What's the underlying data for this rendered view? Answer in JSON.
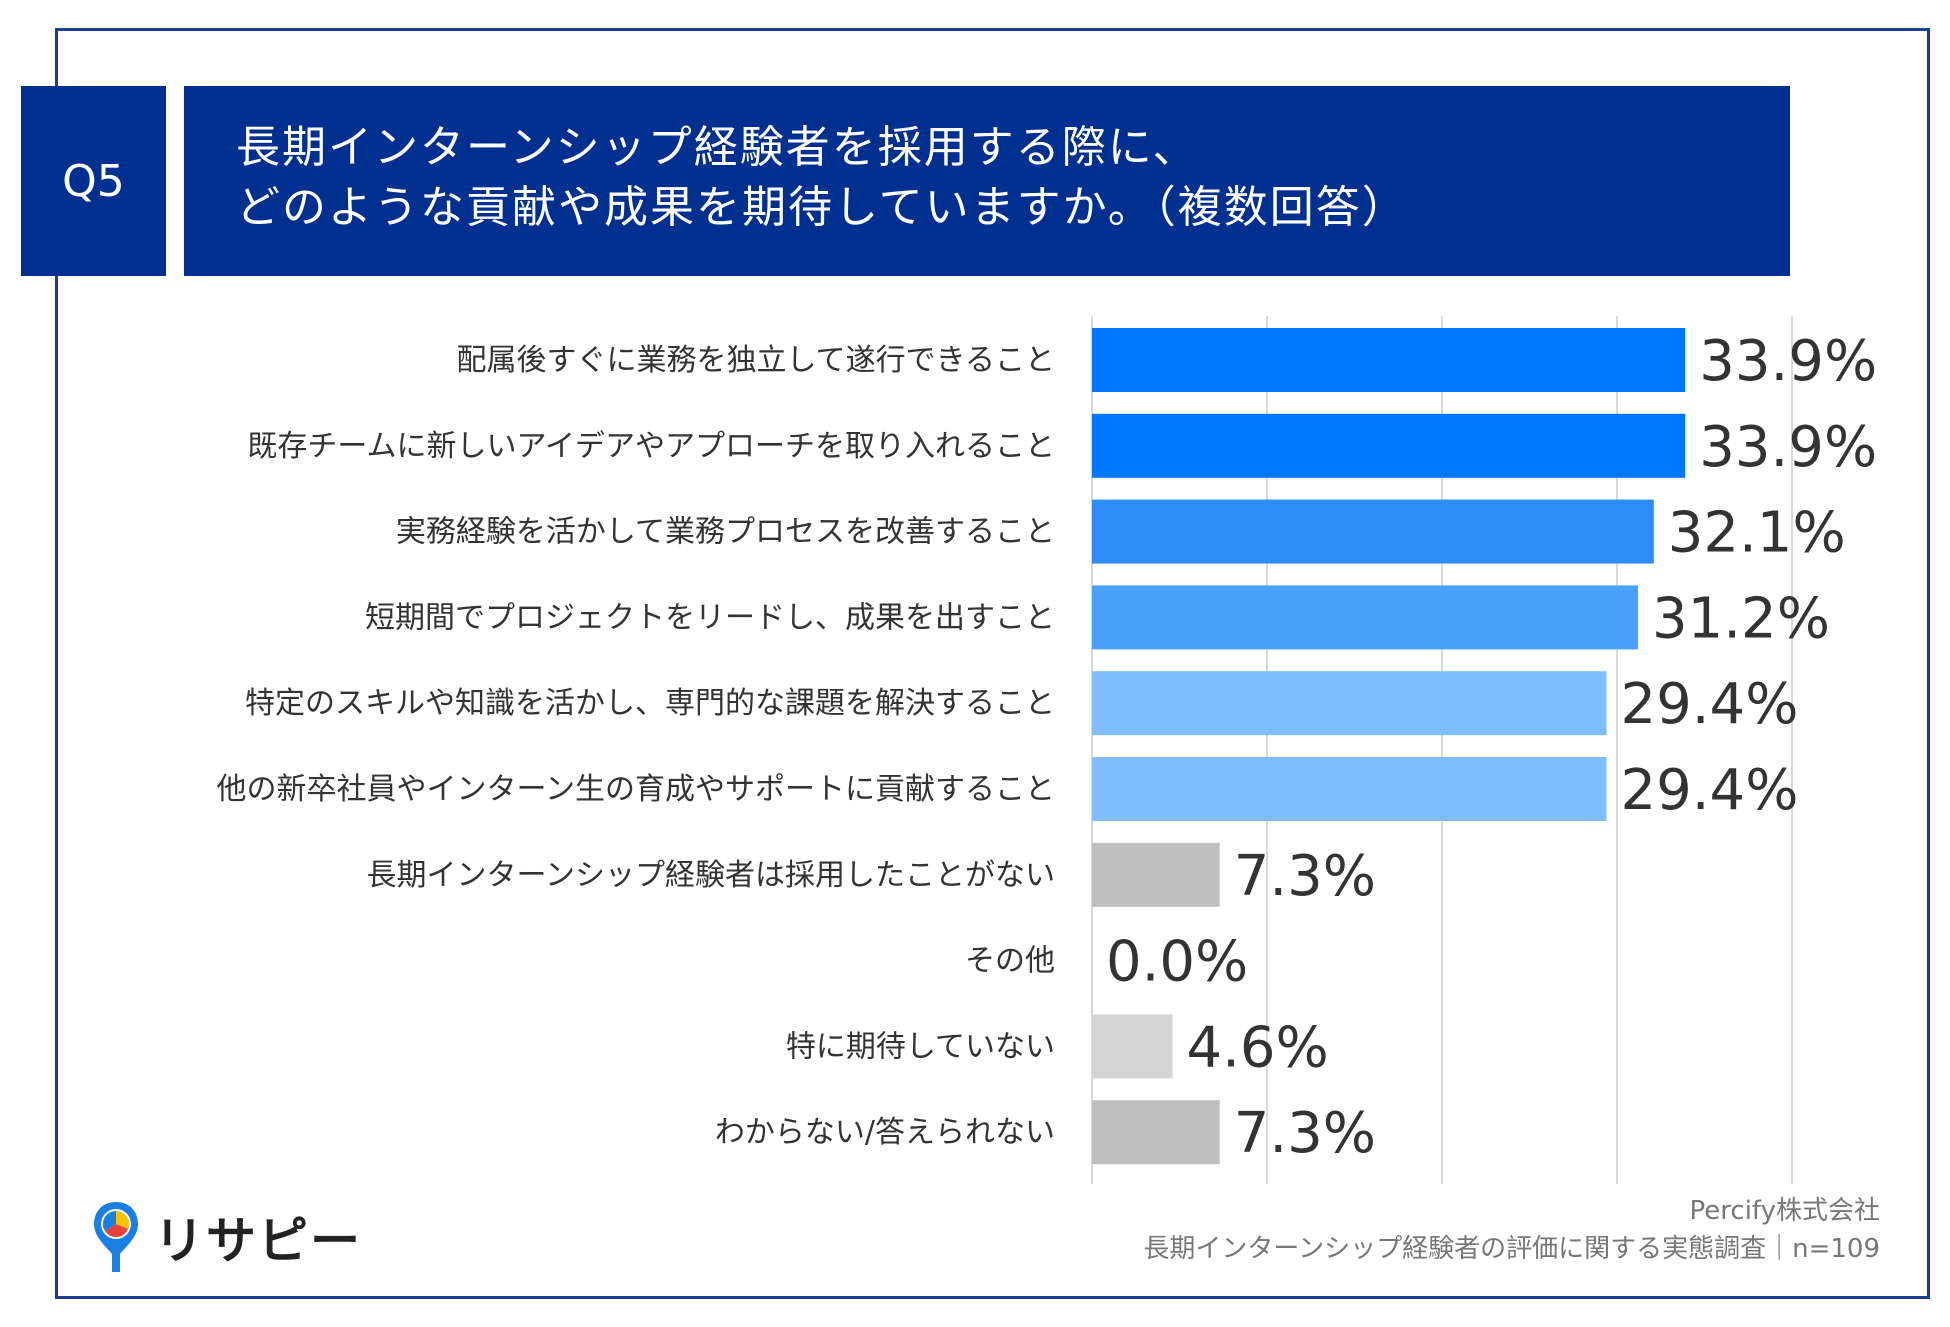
{
  "question": {
    "number": "Q5",
    "title_line1": "長期インターンシップ経験者を採用する際に、",
    "title_line2": "どのような貢献や成果を期待していますか。（複数回答）"
  },
  "chart_data": {
    "type": "bar",
    "orientation": "horizontal",
    "categories": [
      "配属後すぐに業務を独立して遂行できること",
      "既存チームに新しいアイデアやアプローチを取り入れること",
      "実務経験を活かして業務プロセスを改善すること",
      "短期間でプロジェクトをリードし、成果を出すこと",
      "特定のスキルや知識を活かし、専門的な課題を解決すること",
      "他の新卒社員やインターン生の育成やサポートに貢献すること",
      "長期インターンシップ経験者は採用したことがない",
      "その他",
      "特に期待していない",
      "わからない/答えられない"
    ],
    "values": [
      33.9,
      33.9,
      32.1,
      31.2,
      29.4,
      29.4,
      7.3,
      0.0,
      4.6,
      7.3
    ],
    "value_labels": [
      "33.9%",
      "33.9%",
      "32.1%",
      "31.2%",
      "29.4%",
      "29.4%",
      "7.3%",
      "0.0%",
      "4.6%",
      "7.3%"
    ],
    "bar_colors": [
      "#0077ff",
      "#0077ff",
      "#2e8cf7",
      "#4aa0fb",
      "#7fbdfc",
      "#7fbdfc",
      "#bfbfbf",
      "#bfbfbf",
      "#d4d4d4",
      "#bfbfbf"
    ],
    "xlim": [
      0,
      40
    ],
    "grid": true,
    "gridline_values": [
      0,
      10,
      20,
      30,
      40
    ],
    "unit": "%"
  },
  "footer": {
    "company": "Percify株式会社",
    "survey": "長期インターンシップ経験者の評価に関する実態調査｜n=109"
  },
  "logo": {
    "text": "リサピー",
    "icon": "location-pin-pie-icon",
    "colors": [
      "#1a7fe0",
      "#f7c200",
      "#e8423b"
    ]
  }
}
